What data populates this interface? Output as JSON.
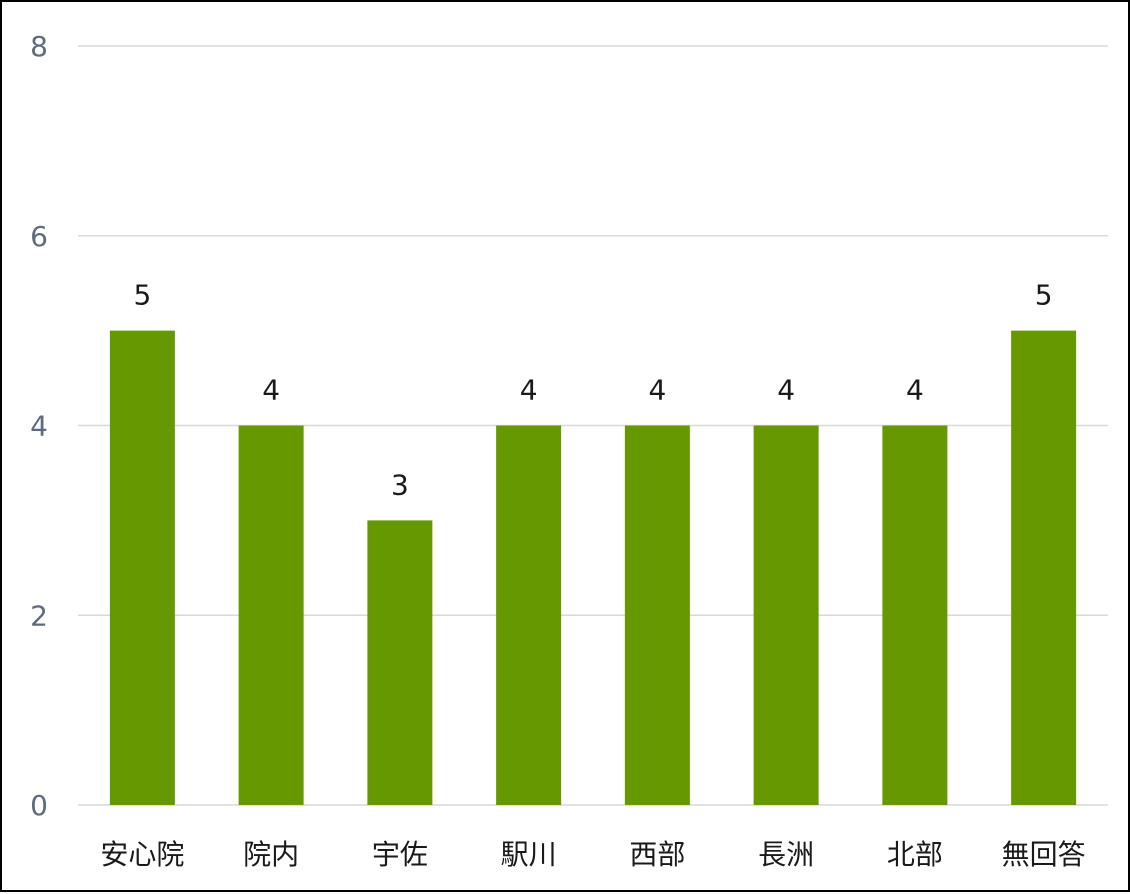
{
  "chart_data": {
    "type": "bar",
    "categories": [
      "安心院",
      "院内",
      "宇佐",
      "駅川",
      "西部",
      "長洲",
      "北部",
      "無回答"
    ],
    "values": [
      5,
      4,
      3,
      4,
      4,
      4,
      4,
      5
    ],
    "data_labels": [
      "5",
      "4",
      "3",
      "4",
      "4",
      "4",
      "4",
      "5"
    ],
    "title": "",
    "xlabel": "",
    "ylabel": "",
    "ylim": [
      0,
      8
    ],
    "yticks": [
      0,
      2,
      4,
      6,
      8
    ],
    "ytick_labels": [
      "0",
      "2",
      "4",
      "6",
      "8"
    ],
    "grid": true,
    "legend": "none",
    "colors": {
      "bar": "#669900",
      "grid": "#d9d9d9",
      "frame": "#000000"
    }
  }
}
